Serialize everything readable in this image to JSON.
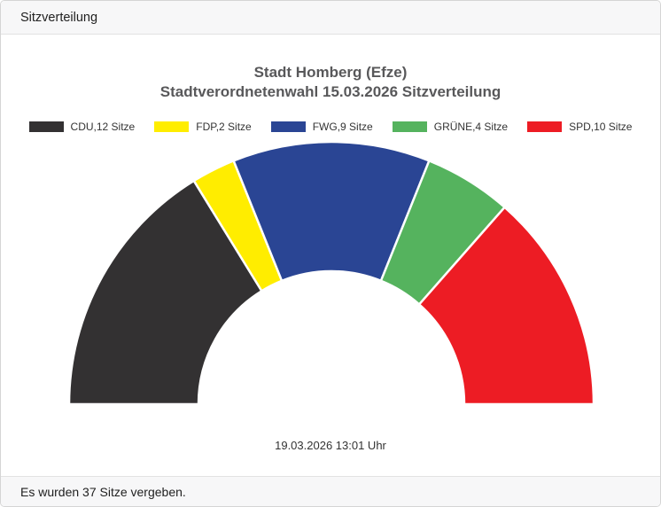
{
  "window": {
    "title": "Sitzverteilung"
  },
  "chart_data": {
    "type": "half-donut",
    "title_line1": "Stadt Homberg (Efze)",
    "title_line2": "Stadtverordnetenwahl 15.03.2026 Sitzverteilung",
    "total_seats": 37,
    "unit": "Sitze",
    "legend_position": "top",
    "series": [
      {
        "name": "CDU",
        "seats": 12,
        "label": "CDU,12 Sitze",
        "color": "#333132"
      },
      {
        "name": "FDP",
        "seats": 2,
        "label": "FDP,2 Sitze",
        "color": "#ffed00"
      },
      {
        "name": "FWG",
        "seats": 9,
        "label": "FWG,9 Sitze",
        "color": "#2a4594"
      },
      {
        "name": "GRÜNE",
        "seats": 4,
        "label": "GRÜNE,4 Sitze",
        "color": "#55b35e"
      },
      {
        "name": "SPD",
        "seats": 10,
        "label": "SPD,10 Sitze",
        "color": "#ed1c24"
      }
    ],
    "timestamp": "19.03.2026 13:01 Uhr"
  },
  "footer": {
    "text": "Es wurden 37 Sitze vergeben."
  }
}
